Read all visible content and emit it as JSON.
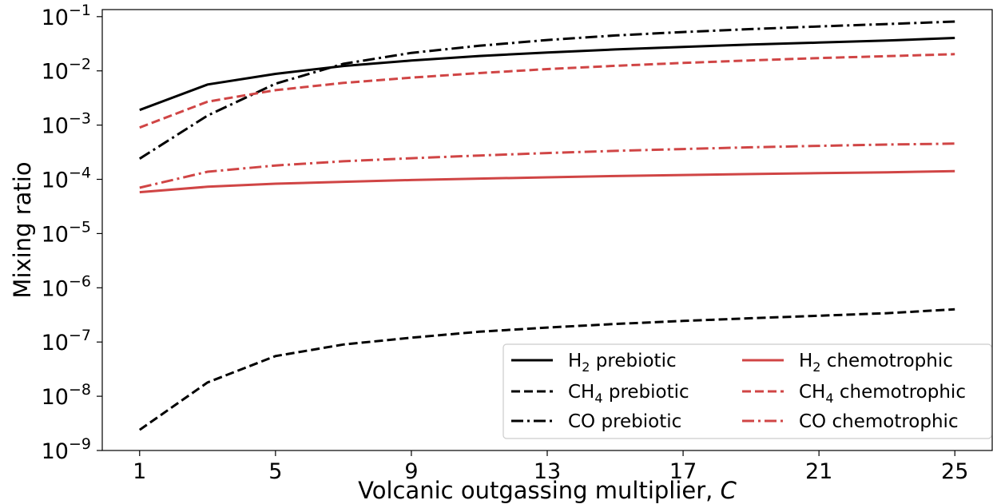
{
  "chart_data": {
    "type": "line",
    "title": "",
    "xlabel": "Volcanic outgassing multiplier, ",
    "xlabel_var": "C",
    "ylabel": "Mixing ratio",
    "y_scale": "log",
    "xlim": [
      -0.1,
      26.1
    ],
    "ylim_exp": [
      -9,
      -0.87
    ],
    "x_ticks": [
      1,
      5,
      9,
      13,
      17,
      21,
      25
    ],
    "y_ticks": [
      {
        "base": "10",
        "exp": "−9",
        "value": 1e-09
      },
      {
        "base": "10",
        "exp": "−8",
        "value": 1e-08
      },
      {
        "base": "10",
        "exp": "−7",
        "value": 1e-07
      },
      {
        "base": "10",
        "exp": "−6",
        "value": 1e-06
      },
      {
        "base": "10",
        "exp": "−5",
        "value": 1e-05
      },
      {
        "base": "10",
        "exp": "−4",
        "value": 0.0001
      },
      {
        "base": "10",
        "exp": "−3",
        "value": 0.001
      },
      {
        "base": "10",
        "exp": "−2",
        "value": 0.01
      },
      {
        "base": "10",
        "exp": "−1",
        "value": 0.1
      }
    ],
    "grid": false,
    "legend_position": "lower-right",
    "x": [
      1,
      3,
      5,
      7,
      9,
      11,
      13,
      15,
      17,
      19,
      21,
      23,
      25
    ],
    "series": [
      {
        "species": "H",
        "sub": "2",
        "suffix": " prebiotic",
        "color": "#000000",
        "dash": "solid",
        "values": [
          0.0019,
          0.0056,
          0.0088,
          0.0123,
          0.0155,
          0.0188,
          0.0218,
          0.0248,
          0.0277,
          0.0305,
          0.0333,
          0.0362,
          0.0405
        ]
      },
      {
        "species": "CH",
        "sub": "4",
        "suffix": " prebiotic",
        "color": "#000000",
        "dash": "dashed",
        "values": [
          2.4e-09,
          1.8e-08,
          5.5e-08,
          9e-08,
          1.2e-07,
          1.55e-07,
          1.85e-07,
          2.15e-07,
          2.45e-07,
          2.75e-07,
          3.05e-07,
          3.4e-07,
          4e-07
        ]
      },
      {
        "species": "CO",
        "sub": "",
        "suffix": " prebiotic",
        "color": "#000000",
        "dash": "dashdot",
        "values": [
          0.00024,
          0.0015,
          0.0058,
          0.0135,
          0.0215,
          0.029,
          0.037,
          0.045,
          0.052,
          0.059,
          0.066,
          0.073,
          0.081
        ]
      },
      {
        "species": "H",
        "sub": "2",
        "suffix": " chemotrophic",
        "color": "#d04545",
        "dash": "solid",
        "values": [
          5.8e-05,
          7.3e-05,
          8.3e-05,
          9e-05,
          9.7e-05,
          0.000103,
          0.000109,
          0.000115,
          0.00012,
          0.000125,
          0.00013,
          0.000135,
          0.000142
        ]
      },
      {
        "species": "CH",
        "sub": "4",
        "suffix": " chemotrophic",
        "color": "#d04545",
        "dash": "dashed",
        "values": [
          0.0009,
          0.0027,
          0.0044,
          0.006,
          0.0075,
          0.0091,
          0.0108,
          0.0124,
          0.014,
          0.0156,
          0.0172,
          0.0187,
          0.0203
        ]
      },
      {
        "species": "CO",
        "sub": "",
        "suffix": " chemotrophic",
        "color": "#d04545",
        "dash": "dashdot",
        "values": [
          7e-05,
          0.000138,
          0.00018,
          0.000215,
          0.000245,
          0.000275,
          0.000305,
          0.000335,
          0.000362,
          0.00039,
          0.000415,
          0.000438,
          0.000455
        ]
      }
    ]
  }
}
